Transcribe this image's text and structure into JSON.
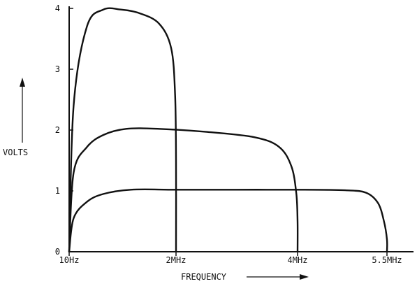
{
  "chart_data": {
    "type": "line",
    "title": "",
    "xlabel": "FREQUENCY",
    "ylabel": "VOLTS",
    "x_tick_labels": [
      "10Hz",
      "2MHz",
      "4MHz",
      "5.5MHz"
    ],
    "y_tick_labels": [
      "0",
      "1",
      "2",
      "3",
      "4"
    ],
    "ylim": [
      0,
      4
    ],
    "x_units": "MHz",
    "grid": false,
    "legend": "none",
    "series": [
      {
        "x": [
          1e-05,
          0.01,
          0.1,
          0.3,
          0.6,
          1.0,
          1.5,
          1.85,
          1.97,
          2.0,
          2.0
        ],
        "y": [
          0,
          2.4,
          3.7,
          3.98,
          3.98,
          3.92,
          3.75,
          3.35,
          2.6,
          1.5,
          0
        ]
      },
      {
        "x": [
          1e-05,
          0.01,
          0.1,
          0.3,
          0.7,
          1.5,
          2.5,
          3.3,
          3.7,
          3.9,
          3.98,
          4.0,
          4.0
        ],
        "y": [
          0,
          1.3,
          1.72,
          1.92,
          2.02,
          2.02,
          1.97,
          1.88,
          1.72,
          1.4,
          0.95,
          0.5,
          0
        ]
      },
      {
        "x": [
          1e-05,
          0.01,
          0.1,
          0.3,
          0.8,
          2.0,
          3.0,
          4.0,
          4.8,
          5.15,
          5.35,
          5.45,
          5.5,
          5.5
        ],
        "y": [
          0,
          0.55,
          0.82,
          0.95,
          1.02,
          1.02,
          1.02,
          1.02,
          1.01,
          0.97,
          0.8,
          0.5,
          0.2,
          0
        ]
      }
    ]
  }
}
